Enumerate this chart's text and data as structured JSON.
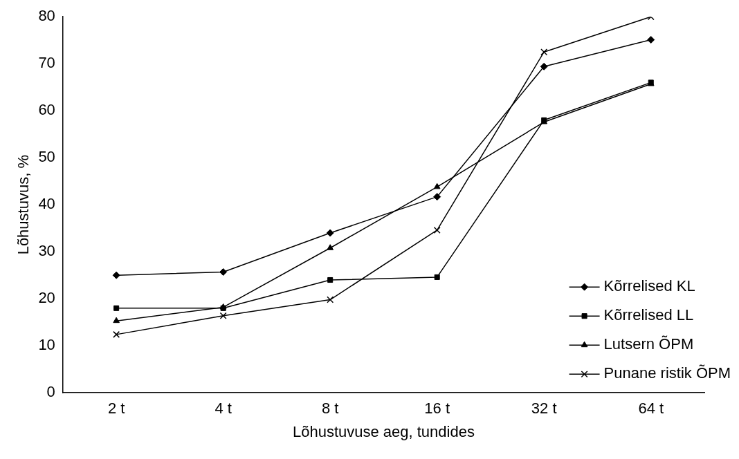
{
  "chart_data": {
    "type": "line",
    "xlabel": "Lõhustuvuse aeg, tundides",
    "ylabel": "Lõhustuvus, %",
    "categories": [
      "2 t",
      "4 t",
      "8 t",
      "16 t",
      "32 t",
      "64 t"
    ],
    "series": [
      {
        "name": "Kõrrelised KL",
        "color": "#000000",
        "marker": "diamond",
        "values": [
          25,
          25.7,
          34,
          41.7,
          69.4,
          75.1
        ]
      },
      {
        "name": "Kõrrelised LL",
        "color": "#000000",
        "marker": "square",
        "values": [
          18,
          18,
          24,
          24.6,
          58,
          66
        ]
      },
      {
        "name": "Lutsern ÕPM",
        "color": "#000000",
        "marker": "triangle",
        "values": [
          15.3,
          18.2,
          30.8,
          43.8,
          57.6,
          65.7
        ]
      },
      {
        "name": "Punane ristik ÕPM",
        "color": "#000000",
        "marker": "cross",
        "values": [
          12.4,
          16.4,
          19.8,
          34.6,
          72.5,
          80
        ]
      }
    ],
    "ylim": [
      0,
      80
    ],
    "yticks": [
      0,
      10,
      20,
      30,
      40,
      50,
      60,
      70,
      80
    ],
    "grid": false,
    "legend": "bottom right",
    "line_style": "solid"
  }
}
